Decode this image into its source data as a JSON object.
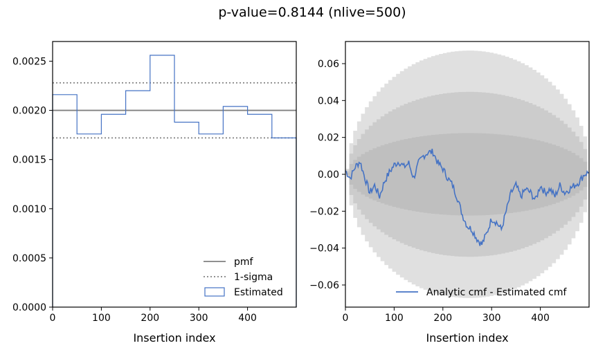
{
  "figure": {
    "title": "p-value=0.8144 (nlive=500)"
  },
  "colors": {
    "estimated": "#4472C4",
    "pmf": "#808080",
    "sigma": "#808080",
    "band1": "#bfbfbf",
    "band2": "#cccccc",
    "band3": "#e0e0e0"
  },
  "chart_data": [
    {
      "type": "step-histogram",
      "xlabel": "Insertion index",
      "ylabel": "",
      "xlim": [
        0,
        500
      ],
      "ylim": [
        0,
        0.0027
      ],
      "xticks": [
        0,
        100,
        200,
        300,
        400
      ],
      "yticks": [
        0.0,
        0.0005,
        0.001,
        0.0015,
        0.002,
        0.0025
      ],
      "ytick_labels": [
        "0.0000",
        "0.0005",
        "0.0010",
        "0.0015",
        "0.0020",
        "0.0025"
      ],
      "bin_edges": [
        0,
        50,
        100,
        150,
        200,
        250,
        300,
        350,
        400,
        450,
        500
      ],
      "estimated": [
        0.00216,
        0.00176,
        0.00196,
        0.0022,
        0.00256,
        0.00188,
        0.00176,
        0.00204,
        0.00196,
        0.00172
      ],
      "pmf": 0.002,
      "sigma_upper": 0.00228,
      "sigma_lower": 0.00172,
      "legend": {
        "position": "lower-right",
        "entries": [
          "pmf",
          "1-sigma",
          "Estimated"
        ]
      }
    },
    {
      "type": "line",
      "xlabel": "Insertion index",
      "ylabel": "",
      "xlim": [
        0,
        500
      ],
      "ylim": [
        -0.072,
        0.072
      ],
      "xticks": [
        0,
        100,
        200,
        300,
        400
      ],
      "yticks": [
        -0.06,
        -0.04,
        -0.02,
        0.0,
        0.02,
        0.04,
        0.06
      ],
      "ytick_labels": [
        "−0.06",
        "−0.04",
        "−0.02",
        "0.00",
        "0.02",
        "0.04",
        "0.06"
      ],
      "band_sigmas": [
        1,
        2,
        3
      ],
      "nlive": 500,
      "series": [
        {
          "name": "Analytic cmf - Estimated cmf",
          "x": [
            0,
            10,
            20,
            30,
            40,
            50,
            60,
            70,
            80,
            90,
            100,
            110,
            120,
            130,
            140,
            150,
            160,
            170,
            180,
            190,
            200,
            210,
            220,
            230,
            240,
            250,
            260,
            270,
            280,
            290,
            300,
            310,
            320,
            330,
            340,
            350,
            360,
            370,
            380,
            390,
            400,
            410,
            420,
            430,
            440,
            450,
            460,
            470,
            480,
            490,
            500
          ],
          "y": [
            0.002,
            -0.002,
            0.004,
            0.007,
            -0.002,
            -0.01,
            -0.006,
            -0.012,
            -0.004,
            0.001,
            0.005,
            0.007,
            0.004,
            0.006,
            -0.002,
            0.006,
            0.01,
            0.012,
            0.012,
            0.006,
            0.003,
            -0.002,
            -0.006,
            -0.013,
            -0.022,
            -0.028,
            -0.03,
            -0.035,
            -0.038,
            -0.032,
            -0.024,
            -0.026,
            -0.03,
            -0.02,
            -0.01,
            -0.006,
            -0.012,
            -0.008,
            -0.01,
            -0.014,
            -0.006,
            -0.01,
            -0.008,
            -0.012,
            -0.006,
            -0.01,
            -0.008,
            -0.006,
            -0.004,
            0.0,
            0.001
          ]
        }
      ],
      "legend": {
        "position": "lower-right",
        "entries": [
          "Analytic cmf - Estimated cmf"
        ]
      }
    }
  ]
}
